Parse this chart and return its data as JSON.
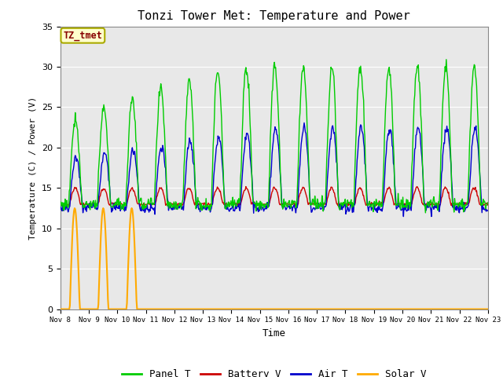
{
  "title": "Tonzi Tower Met: Temperature and Power",
  "xlabel": "Time",
  "ylabel": "Temperature (C) / Power (V)",
  "ylim": [
    0,
    35
  ],
  "xlim_days": [
    8,
    23
  ],
  "bg_color": "#e8e8e8",
  "panel_t_color": "#00cc00",
  "battery_v_color": "#cc0000",
  "air_t_color": "#0000cc",
  "solar_v_color": "#ffaa00",
  "annotation_text": "TZ_tmet",
  "annotation_bg": "#ffffcc",
  "annotation_border": "#aaaa00",
  "annotation_text_color": "#880000",
  "legend_labels": [
    "Panel T",
    "Battery V",
    "Air T",
    "Solar V"
  ],
  "font_family": "monospace",
  "grid_color": "white",
  "yticks": [
    0,
    5,
    10,
    15,
    20,
    25,
    30,
    35
  ]
}
